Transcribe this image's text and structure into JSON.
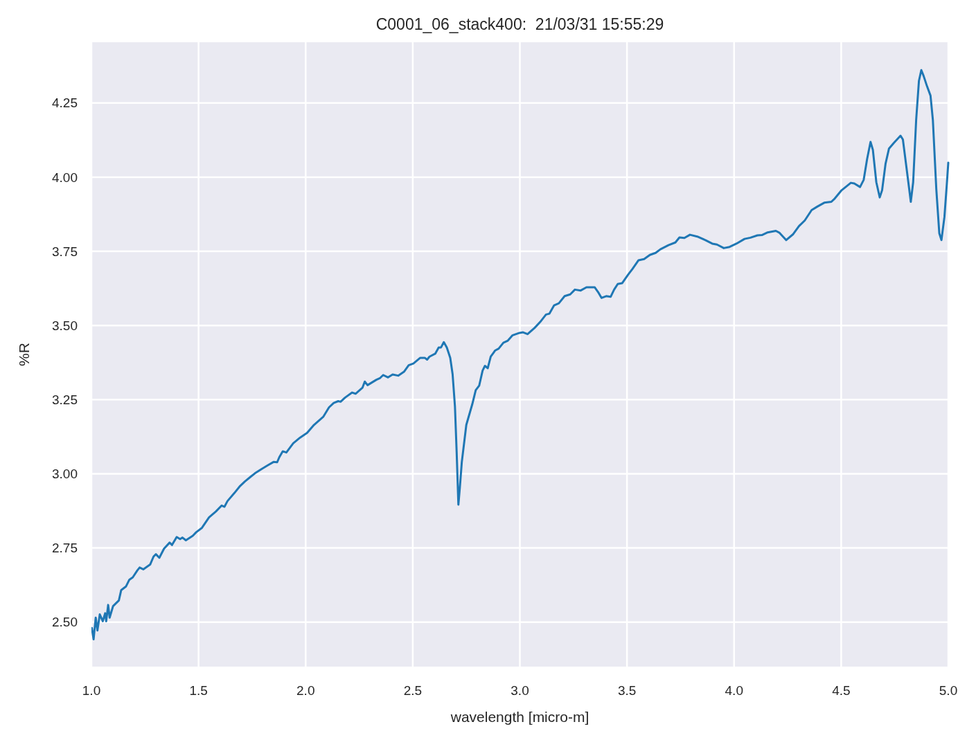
{
  "chart_data": {
    "type": "line",
    "title": "C0001_06_stack400:  21/03/31 15:55:29",
    "xlabel": "wavelength [micro-m]",
    "ylabel": "%R",
    "xlim": [
      1.0,
      5.0
    ],
    "xticks": [
      {
        "value": 1.0,
        "label": "1.0"
      },
      1.5,
      {
        "value": 2.0,
        "label": "2.0"
      },
      2.5,
      {
        "value": 3.0,
        "label": "3.0"
      },
      3.5,
      {
        "value": 4.0,
        "label": "4.0"
      },
      4.5,
      {
        "value": 5.0,
        "label": "5.0"
      }
    ],
    "ylim": [
      2.35,
      4.455
    ],
    "yticks": [
      {
        "value": 2.5,
        "label": "2.50"
      },
      2.75,
      {
        "value": 3.0,
        "label": "3.00"
      },
      3.25,
      {
        "value": 3.5,
        "label": "3.50"
      },
      3.75,
      {
        "value": 4.0,
        "label": "4.00"
      },
      4.25
    ],
    "grid": true,
    "x": [
      1.002,
      1.01,
      1.02,
      1.028,
      1.039,
      1.053,
      1.064,
      1.069,
      1.078,
      1.085,
      1.101,
      1.128,
      1.139,
      1.161,
      1.177,
      1.193,
      1.214,
      1.225,
      1.242,
      1.274,
      1.29,
      1.301,
      1.317,
      1.339,
      1.365,
      1.376,
      1.398,
      1.414,
      1.425,
      1.441,
      1.473,
      1.489,
      1.516,
      1.549,
      1.581,
      1.608,
      1.621,
      1.635,
      1.667,
      1.694,
      1.716,
      1.743,
      1.764,
      1.796,
      1.824,
      1.85,
      1.867,
      1.877,
      1.893,
      1.91,
      1.942,
      1.974,
      2.007,
      2.039,
      2.082,
      2.109,
      2.131,
      2.152,
      2.163,
      2.184,
      2.217,
      2.233,
      2.265,
      2.276,
      2.289,
      2.33,
      2.346,
      2.362,
      2.384,
      2.406,
      2.432,
      2.459,
      2.481,
      2.503,
      2.535,
      2.556,
      2.567,
      2.578,
      2.605,
      2.621,
      2.632,
      2.645,
      2.659,
      2.675,
      2.686,
      2.697,
      2.705,
      2.713,
      2.72,
      2.729,
      2.75,
      2.778,
      2.794,
      2.81,
      2.826,
      2.837,
      2.85,
      2.864,
      2.885,
      2.901,
      2.923,
      2.944,
      2.966,
      2.998,
      3.015,
      3.036,
      3.069,
      3.095,
      3.122,
      3.138,
      3.16,
      3.182,
      3.209,
      3.235,
      3.257,
      3.284,
      3.311,
      3.349,
      3.365,
      3.381,
      3.403,
      3.424,
      3.44,
      3.457,
      3.478,
      3.505,
      3.526,
      3.554,
      3.58,
      3.607,
      3.634,
      3.656,
      3.694,
      3.726,
      3.745,
      3.768,
      3.794,
      3.828,
      3.866,
      3.898,
      3.92,
      3.952,
      3.979,
      4.011,
      4.049,
      4.076,
      4.109,
      4.13,
      4.157,
      4.195,
      4.211,
      4.243,
      4.276,
      4.303,
      4.33,
      4.362,
      4.389,
      4.421,
      4.454,
      4.47,
      4.502,
      4.545,
      4.561,
      4.588,
      4.605,
      4.621,
      4.637,
      4.648,
      4.664,
      4.68,
      4.691,
      4.707,
      4.723,
      4.745,
      4.777,
      4.788,
      4.804,
      4.825,
      4.836,
      4.85,
      4.863,
      4.874,
      4.885,
      4.901,
      4.917,
      4.928,
      4.944,
      4.958,
      4.968,
      4.982,
      4.993,
      5.0
    ],
    "series": [
      {
        "color": "#1f77b4",
        "values": [
          2.48,
          2.442,
          2.515,
          2.472,
          2.526,
          2.503,
          2.53,
          2.503,
          2.558,
          2.515,
          2.554,
          2.573,
          2.608,
          2.62,
          2.643,
          2.651,
          2.674,
          2.684,
          2.678,
          2.694,
          2.721,
          2.729,
          2.717,
          2.748,
          2.768,
          2.76,
          2.787,
          2.78,
          2.785,
          2.776,
          2.791,
          2.803,
          2.818,
          2.853,
          2.873,
          2.893,
          2.889,
          2.908,
          2.935,
          2.959,
          2.974,
          2.99,
          3.002,
          3.017,
          3.029,
          3.04,
          3.039,
          3.056,
          3.076,
          3.072,
          3.103,
          3.122,
          3.138,
          3.165,
          3.192,
          3.224,
          3.239,
          3.245,
          3.243,
          3.257,
          3.274,
          3.27,
          3.29,
          3.311,
          3.299,
          3.317,
          3.322,
          3.333,
          3.325,
          3.335,
          3.331,
          3.344,
          3.366,
          3.372,
          3.391,
          3.391,
          3.385,
          3.395,
          3.405,
          3.426,
          3.426,
          3.444,
          3.426,
          3.391,
          3.336,
          3.227,
          3.072,
          2.896,
          2.955,
          3.04,
          3.165,
          3.235,
          3.282,
          3.297,
          3.348,
          3.364,
          3.356,
          3.395,
          3.416,
          3.422,
          3.442,
          3.449,
          3.467,
          3.475,
          3.477,
          3.471,
          3.492,
          3.512,
          3.537,
          3.54,
          3.568,
          3.575,
          3.599,
          3.605,
          3.621,
          3.618,
          3.629,
          3.629,
          3.613,
          3.593,
          3.599,
          3.597,
          3.621,
          3.64,
          3.643,
          3.671,
          3.691,
          3.72,
          3.724,
          3.738,
          3.745,
          3.757,
          3.771,
          3.78,
          3.797,
          3.795,
          3.806,
          3.8,
          3.788,
          3.776,
          3.773,
          3.761,
          3.765,
          3.776,
          3.792,
          3.796,
          3.804,
          3.805,
          3.814,
          3.819,
          3.813,
          3.788,
          3.808,
          3.835,
          3.854,
          3.889,
          3.901,
          3.914,
          3.917,
          3.928,
          3.956,
          3.981,
          3.979,
          3.967,
          3.991,
          4.061,
          4.119,
          4.092,
          3.983,
          3.932,
          3.956,
          4.045,
          4.096,
          4.115,
          4.14,
          4.127,
          4.037,
          3.917,
          3.983,
          4.193,
          4.325,
          4.361,
          4.341,
          4.306,
          4.275,
          4.193,
          3.96,
          3.811,
          3.788,
          3.866,
          3.975,
          4.049
        ]
      }
    ]
  }
}
